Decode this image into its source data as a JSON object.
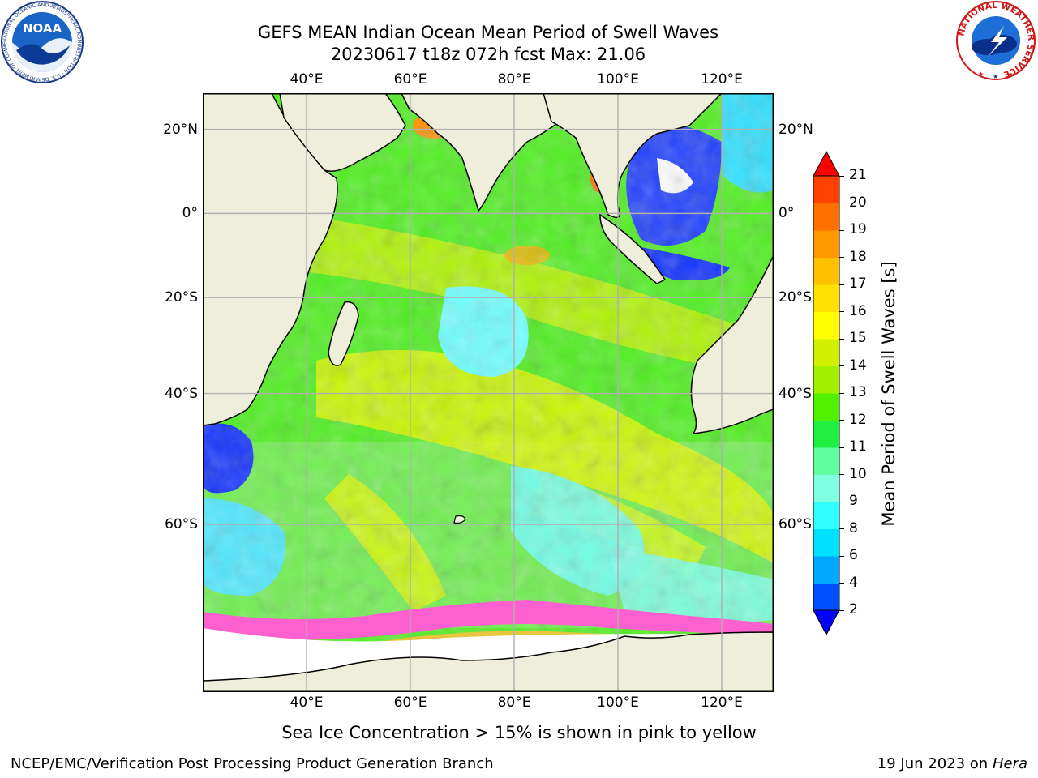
{
  "title": {
    "line1": "GEFS MEAN Indian Ocean Mean Period of Swell Waves",
    "line2": "20230617 t18z 072h fcst   Max: 21.06"
  },
  "map": {
    "lon_range": [
      20,
      130
    ],
    "lat_range": [
      -75,
      28
    ],
    "lon_ticks": [
      "40°E",
      "60°E",
      "80°E",
      "100°E",
      "120°E"
    ],
    "lat_ticks": [
      "20°N",
      "0°",
      "20°S",
      "40°S",
      "60°S"
    ],
    "land_color": "#efeedb",
    "grid_color": "#b0b0b0"
  },
  "colorbar": {
    "label": "Mean Period of Swell Waves [s]",
    "ticks": [
      "2",
      "4",
      "6",
      "8",
      "9",
      "10",
      "11",
      "12",
      "13",
      "14",
      "15",
      "16",
      "17",
      "18",
      "19",
      "20",
      "21"
    ],
    "colors": [
      "#0050ff",
      "#00a8ff",
      "#00e0ff",
      "#30ffff",
      "#80ffe0",
      "#60ffa0",
      "#20ee40",
      "#50f000",
      "#a0f000",
      "#d0f000",
      "#ffff00",
      "#ffe000",
      "#ffc000",
      "#ff9800",
      "#ff7000",
      "#ff4000"
    ],
    "under_color": "#0000ff",
    "over_color": "#ff0000"
  },
  "note": "Sea Ice Concentration > 15% is shown in pink to yellow",
  "footer": {
    "left": "NCEP/EMC/Verification Post Processing Product Generation Branch",
    "right_date": "19 Jun 2023 on",
    "right_host": "Hera"
  },
  "logos": {
    "noaa_text": "NOAA",
    "noaa_ring": "NATIONAL OCEANIC AND ATMOSPHERIC ADMINISTRATION · U.S. DEPARTMENT OF COMMERCE",
    "nws_ring": "NATIONAL WEATHER SERVICE"
  }
}
